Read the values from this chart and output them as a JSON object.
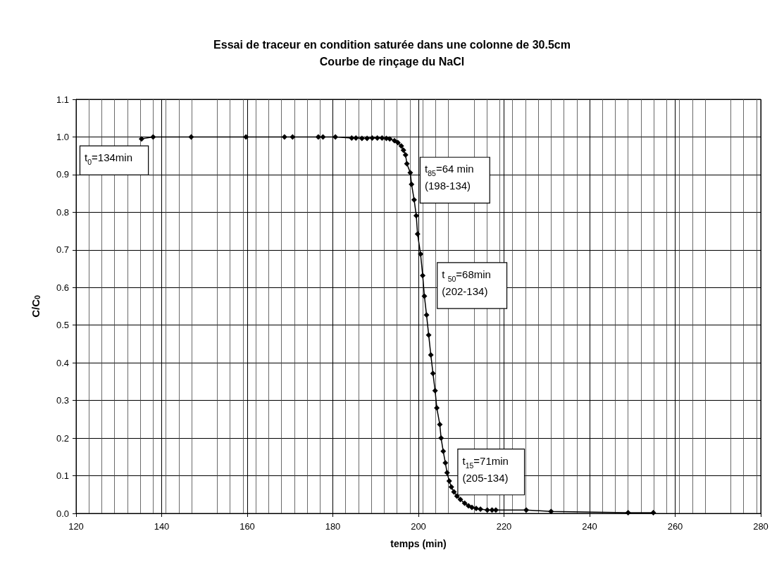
{
  "chart_data": {
    "type": "line",
    "title": "Essai de traceur en condition saturée dans une colonne de 30.5cm\nCourbe de rinçage du NaCl",
    "xlabel": "temps (min)",
    "ylabel": "C/C$_{0}$",
    "xlim": [
      120,
      280
    ],
    "xticks": [
      120,
      140,
      160,
      180,
      200,
      220,
      240,
      260,
      280
    ],
    "ylim": [
      0,
      1.1
    ],
    "yticks": [
      {
        "value": 0,
        "label": "0.0"
      },
      0.1,
      0.2,
      0.3,
      0.4,
      0.5,
      0.6,
      0.7,
      0.8,
      0.9,
      {
        "value": 1,
        "label": "1.0"
      },
      1.1
    ],
    "grid": true,
    "marker": "diamond",
    "line_style": "solid",
    "series": [
      {
        "color": "#000000",
        "x": [
          135.3,
          138.0,
          146.9,
          159.7,
          168.7,
          170.6,
          176.6,
          177.7,
          180.6,
          184.4,
          185.4,
          186.8,
          188.0,
          189.2,
          190.4,
          191.5,
          192.5,
          193.3,
          194.4,
          195.2,
          196.0,
          196.5,
          197.0,
          197.3,
          198.1,
          198.4,
          199.0,
          199.5,
          199.8,
          200.5,
          201.0,
          201.4,
          201.9,
          202.4,
          202.9,
          203.4,
          203.9,
          204.3,
          205.0,
          205.3,
          205.8,
          206.3,
          206.7,
          207.2,
          207.7,
          208.3,
          209.0,
          209.8,
          210.8,
          211.7,
          212.5,
          213.5,
          214.5,
          216.1,
          217.2,
          218.1,
          225.2,
          231.0,
          249.0,
          254.9
        ],
        "values": [
          0.995,
          1.0,
          1.0,
          1.0,
          1.0,
          1.0,
          1.0,
          1.0,
          1.0,
          0.997,
          0.997,
          0.996,
          0.996,
          0.997,
          0.997,
          0.997,
          0.996,
          0.995,
          0.99,
          0.985,
          0.976,
          0.965,
          0.952,
          0.929,
          0.905,
          0.874,
          0.833,
          0.791,
          0.742,
          0.689,
          0.632,
          0.577,
          0.527,
          0.474,
          0.421,
          0.372,
          0.326,
          0.28,
          0.236,
          0.2,
          0.165,
          0.134,
          0.108,
          0.086,
          0.07,
          0.057,
          0.046,
          0.037,
          0.027,
          0.02,
          0.016,
          0.013,
          0.011,
          0.009,
          0.009,
          0.009,
          0.009,
          0.005,
          0.002,
          0.002
        ]
      }
    ],
    "annotations": [
      "t$_{0}$=134min",
      "t$_{85}$=64 min\n(198-134)",
      "t $_{50}$=68min\n(202-134)",
      "t$_{15}$=71min\n(205-134)"
    ]
  }
}
